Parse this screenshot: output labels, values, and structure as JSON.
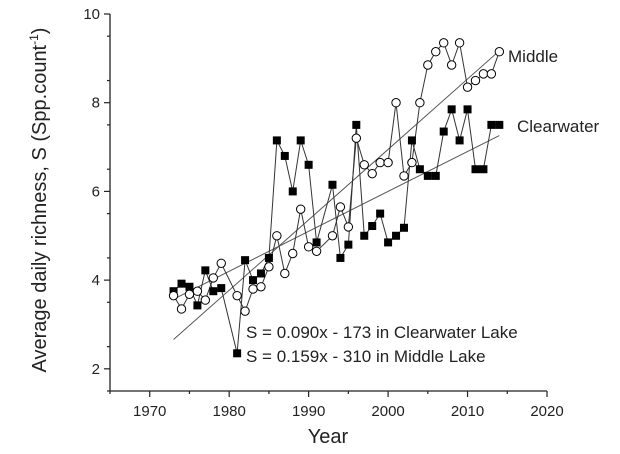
{
  "chart_data": {
    "type": "scatter",
    "xlabel": "Year",
    "ylabel": "Average daily richness, S (Spp.count",
    "ylabel_superscript": "-1",
    "ylabel_close": ")",
    "xlim": [
      1965,
      2020
    ],
    "ylim": [
      1.5,
      10
    ],
    "x_ticks": [
      1970,
      1980,
      1990,
      2000,
      2010,
      2020
    ],
    "y_ticks": [
      2,
      4,
      6,
      8,
      10
    ],
    "x_tick_labels": [
      "1970",
      "1980",
      "1990",
      "2000",
      "2010",
      "2020"
    ],
    "y_tick_labels": [
      "2",
      "4",
      "6",
      "8",
      "10"
    ],
    "series": [
      {
        "name": "Clearwater",
        "marker": "filled-square",
        "color": "#000000",
        "points": [
          [
            1973,
            3.75
          ],
          [
            1974,
            3.92
          ],
          [
            1975,
            3.85
          ],
          [
            1976,
            3.43
          ],
          [
            1977,
            4.22
          ],
          [
            1978,
            3.75
          ],
          [
            1979,
            3.82
          ],
          [
            1981,
            2.35
          ],
          [
            1982,
            4.45
          ],
          [
            1983,
            4.0
          ],
          [
            1984,
            4.15
          ],
          [
            1985,
            4.5
          ],
          [
            1986,
            7.15
          ],
          [
            1987,
            6.8
          ],
          [
            1988,
            6.0
          ],
          [
            1989,
            7.15
          ],
          [
            1990,
            6.6
          ],
          [
            1991,
            4.85
          ],
          [
            1993,
            6.15
          ],
          [
            1994,
            4.5
          ],
          [
            1995,
            4.8
          ],
          [
            1996,
            7.5
          ],
          [
            1997,
            5.0
          ],
          [
            1998,
            5.22
          ],
          [
            1999,
            5.5
          ],
          [
            2000,
            4.85
          ],
          [
            2001,
            5.0
          ],
          [
            2002,
            5.18
          ],
          [
            2003,
            7.15
          ],
          [
            2004,
            6.5
          ],
          [
            2005,
            6.35
          ],
          [
            2006,
            6.35
          ],
          [
            2007,
            7.35
          ],
          [
            2008,
            7.85
          ],
          [
            2009,
            7.15
          ],
          [
            2010,
            7.85
          ],
          [
            2011,
            6.5
          ],
          [
            2012,
            6.5
          ],
          [
            2013,
            7.5
          ],
          [
            2014,
            7.5
          ]
        ]
      },
      {
        "name": "Middle",
        "marker": "open-circle",
        "color": "#000000",
        "points": [
          [
            1973,
            3.65
          ],
          [
            1974,
            3.35
          ],
          [
            1975,
            3.68
          ],
          [
            1976,
            3.75
          ],
          [
            1977,
            3.55
          ],
          [
            1978,
            4.05
          ],
          [
            1979,
            4.38
          ],
          [
            1981,
            3.65
          ],
          [
            1982,
            3.3
          ],
          [
            1983,
            3.8
          ],
          [
            1984,
            3.85
          ],
          [
            1985,
            4.3
          ],
          [
            1986,
            5.0
          ],
          [
            1987,
            4.15
          ],
          [
            1988,
            4.6
          ],
          [
            1989,
            5.6
          ],
          [
            1990,
            4.75
          ],
          [
            1991,
            4.65
          ],
          [
            1993,
            5.0
          ],
          [
            1994,
            5.65
          ],
          [
            1995,
            5.2
          ],
          [
            1996,
            7.2
          ],
          [
            1997,
            6.6
          ],
          [
            1998,
            6.4
          ],
          [
            1999,
            6.65
          ],
          [
            2000,
            6.65
          ],
          [
            2001,
            8.0
          ],
          [
            2002,
            6.35
          ],
          [
            2003,
            6.65
          ],
          [
            2004,
            8.0
          ],
          [
            2005,
            8.85
          ],
          [
            2006,
            9.15
          ],
          [
            2007,
            9.35
          ],
          [
            2008,
            8.85
          ],
          [
            2009,
            9.35
          ],
          [
            2010,
            8.35
          ],
          [
            2011,
            8.5
          ],
          [
            2012,
            8.65
          ],
          [
            2013,
            8.65
          ],
          [
            2014,
            9.15
          ]
        ]
      }
    ],
    "trend_lines": [
      {
        "series": "Clearwater",
        "x": [
          1973,
          2014
        ],
        "y": [
          3.57,
          7.26
        ]
      },
      {
        "series": "Middle",
        "x": [
          1973,
          2014
        ],
        "y": [
          2.66,
          9.17
        ]
      }
    ],
    "annotations": [
      "S = 0.090x - 173 in Clearwater Lake",
      "S = 0.159x - 310 in Middle Lake"
    ],
    "grid": false,
    "legend": "inline labels"
  }
}
